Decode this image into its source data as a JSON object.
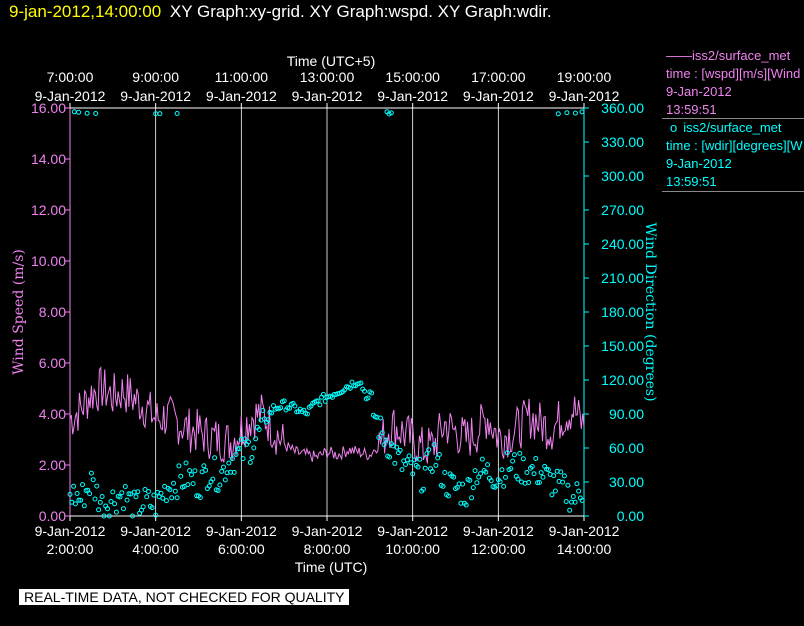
{
  "header": {
    "timestamp": "9-jan-2012,14:00:00",
    "graphs": "XY Graph:xy-grid.  XY Graph:wspd.  XY Graph:wdir."
  },
  "legend": {
    "wspd": {
      "marker": "——",
      "name": "iss2/surface_met",
      "desc": "time : [wspd][m/s][Wind",
      "date": "9-Jan-2012",
      "time": "13:59:51"
    },
    "wdir": {
      "marker": "o",
      "name": "iss2/surface_met",
      "desc": "time : [wdir][degrees][W",
      "date": "9-Jan-2012",
      "time": "13:59:51"
    }
  },
  "footer": {
    "qc_note": "REAL-TIME DATA, NOT CHECKED FOR QUALITY"
  },
  "colors": {
    "wspd": "#ee82ee",
    "wdir": "#00ffff",
    "grid": "#ffffff",
    "axis_left": "#ee82ee",
    "axis_right": "#00ffff"
  },
  "chart_data": {
    "type": "line",
    "x_top_label": "Time (UTC+5)",
    "x_bottom_label": "Time (UTC)",
    "top_ticks": [
      {
        "time": "7:00:00",
        "date": "9-Jan-2012"
      },
      {
        "time": "9:00:00",
        "date": "9-Jan-2012"
      },
      {
        "time": "11:00:00",
        "date": "9-Jan-2012"
      },
      {
        "time": "13:00:00",
        "date": "9-Jan-2012"
      },
      {
        "time": "15:00:00",
        "date": "9-Jan-2012"
      },
      {
        "time": "17:00:00",
        "date": "9-Jan-2012"
      },
      {
        "time": "19:00:00",
        "date": "9-Jan-2012"
      }
    ],
    "bottom_ticks": [
      {
        "date": "9-Jan-2012",
        "time": "2:00:00"
      },
      {
        "date": "9-Jan-2012",
        "time": "4:00:00"
      },
      {
        "date": "9-Jan-2012",
        "time": "6:00:00"
      },
      {
        "date": "9-Jan-2012",
        "time": "8:00:00"
      },
      {
        "date": "9-Jan-2012",
        "time": "10:00:00"
      },
      {
        "date": "9-Jan-2012",
        "time": "12:00:00"
      },
      {
        "date": "9-Jan-2012",
        "time": "14:00:00"
      }
    ],
    "x_range_hours_utc": [
      2,
      14
    ],
    "y_left": {
      "label": "Wind Speed (m/s)",
      "ticks": [
        "0.00",
        "2.00",
        "4.00",
        "6.00",
        "8.00",
        "10.00",
        "12.00",
        "14.00",
        "16.00"
      ],
      "range": [
        0,
        16
      ]
    },
    "y_right": {
      "label": "Wind Direction (degrees)",
      "ticks": [
        "0.00",
        "30.00",
        "60.00",
        "90.00",
        "120.00",
        "150.00",
        "180.00",
        "210.00",
        "240.00",
        "270.00",
        "300.00",
        "330.00",
        "360.00"
      ],
      "range": [
        0,
        360
      ]
    },
    "grid": "vertical lines at bottom ticks",
    "series": [
      {
        "name": "iss2/surface_met wspd",
        "style": "line",
        "x_hours_utc": [
          2.0,
          2.25,
          2.5,
          2.75,
          3.0,
          3.25,
          3.5,
          3.75,
          4.0,
          4.25,
          4.5,
          4.75,
          5.0,
          5.25,
          5.5,
          5.75,
          6.0,
          6.25,
          6.5,
          6.75,
          7.0,
          7.25,
          7.5,
          7.75,
          8.0,
          8.25,
          8.5,
          8.75,
          9.0,
          9.25,
          9.5,
          9.75,
          10.0,
          10.25,
          10.5,
          10.75,
          11.0,
          11.25,
          11.5,
          11.75,
          12.0,
          12.25,
          12.5,
          12.75,
          13.0,
          13.25,
          13.5,
          13.75,
          14.0
        ],
        "values": [
          3.8,
          4.2,
          4.8,
          5.0,
          4.7,
          4.9,
          4.6,
          4.3,
          3.8,
          3.9,
          3.7,
          3.4,
          3.3,
          3.1,
          3.0,
          2.9,
          3.4,
          3.9,
          4.0,
          3.4,
          2.8,
          2.5,
          2.4,
          2.3,
          2.5,
          2.4,
          2.6,
          2.5,
          2.4,
          2.9,
          3.6,
          3.3,
          3.0,
          2.6,
          2.8,
          3.6,
          3.3,
          3.0,
          3.3,
          3.9,
          3.1,
          3.2,
          3.5,
          3.9,
          3.6,
          3.4,
          3.9,
          4.2,
          3.5
        ]
      },
      {
        "name": "iss2/surface_met wdir",
        "style": "scatter",
        "x_hours_utc": [
          2.0,
          2.25,
          2.5,
          2.75,
          3.0,
          3.25,
          3.5,
          3.75,
          4.0,
          4.25,
          4.5,
          4.75,
          5.0,
          5.25,
          5.5,
          5.75,
          6.0,
          6.25,
          6.5,
          6.75,
          7.0,
          7.25,
          7.5,
          7.75,
          8.0,
          8.25,
          8.5,
          8.75,
          9.0,
          9.25,
          9.5,
          9.75,
          10.0,
          10.25,
          10.5,
          10.75,
          11.0,
          11.25,
          11.5,
          11.75,
          12.0,
          12.25,
          12.5,
          12.75,
          13.0,
          13.25,
          13.5,
          13.75,
          14.0
        ],
        "values": [
          20,
          15,
          30,
          10,
          15,
          20,
          8,
          12,
          10,
          25,
          30,
          35,
          28,
          40,
          35,
          50,
          55,
          62,
          80,
          95,
          98,
          95,
          90,
          100,
          105,
          110,
          115,
          120,
          100,
          75,
          60,
          45,
          40,
          35,
          55,
          30,
          25,
          20,
          40,
          38,
          35,
          45,
          42,
          40,
          38,
          30,
          25,
          15,
          25
        ],
        "wrap_points_near_360": [
          2.1,
          2.2,
          2.4,
          2.6,
          4.0,
          4.1,
          4.5,
          9.4,
          9.45,
          9.5,
          13.4,
          13.6,
          13.8,
          13.95
        ]
      }
    ]
  }
}
